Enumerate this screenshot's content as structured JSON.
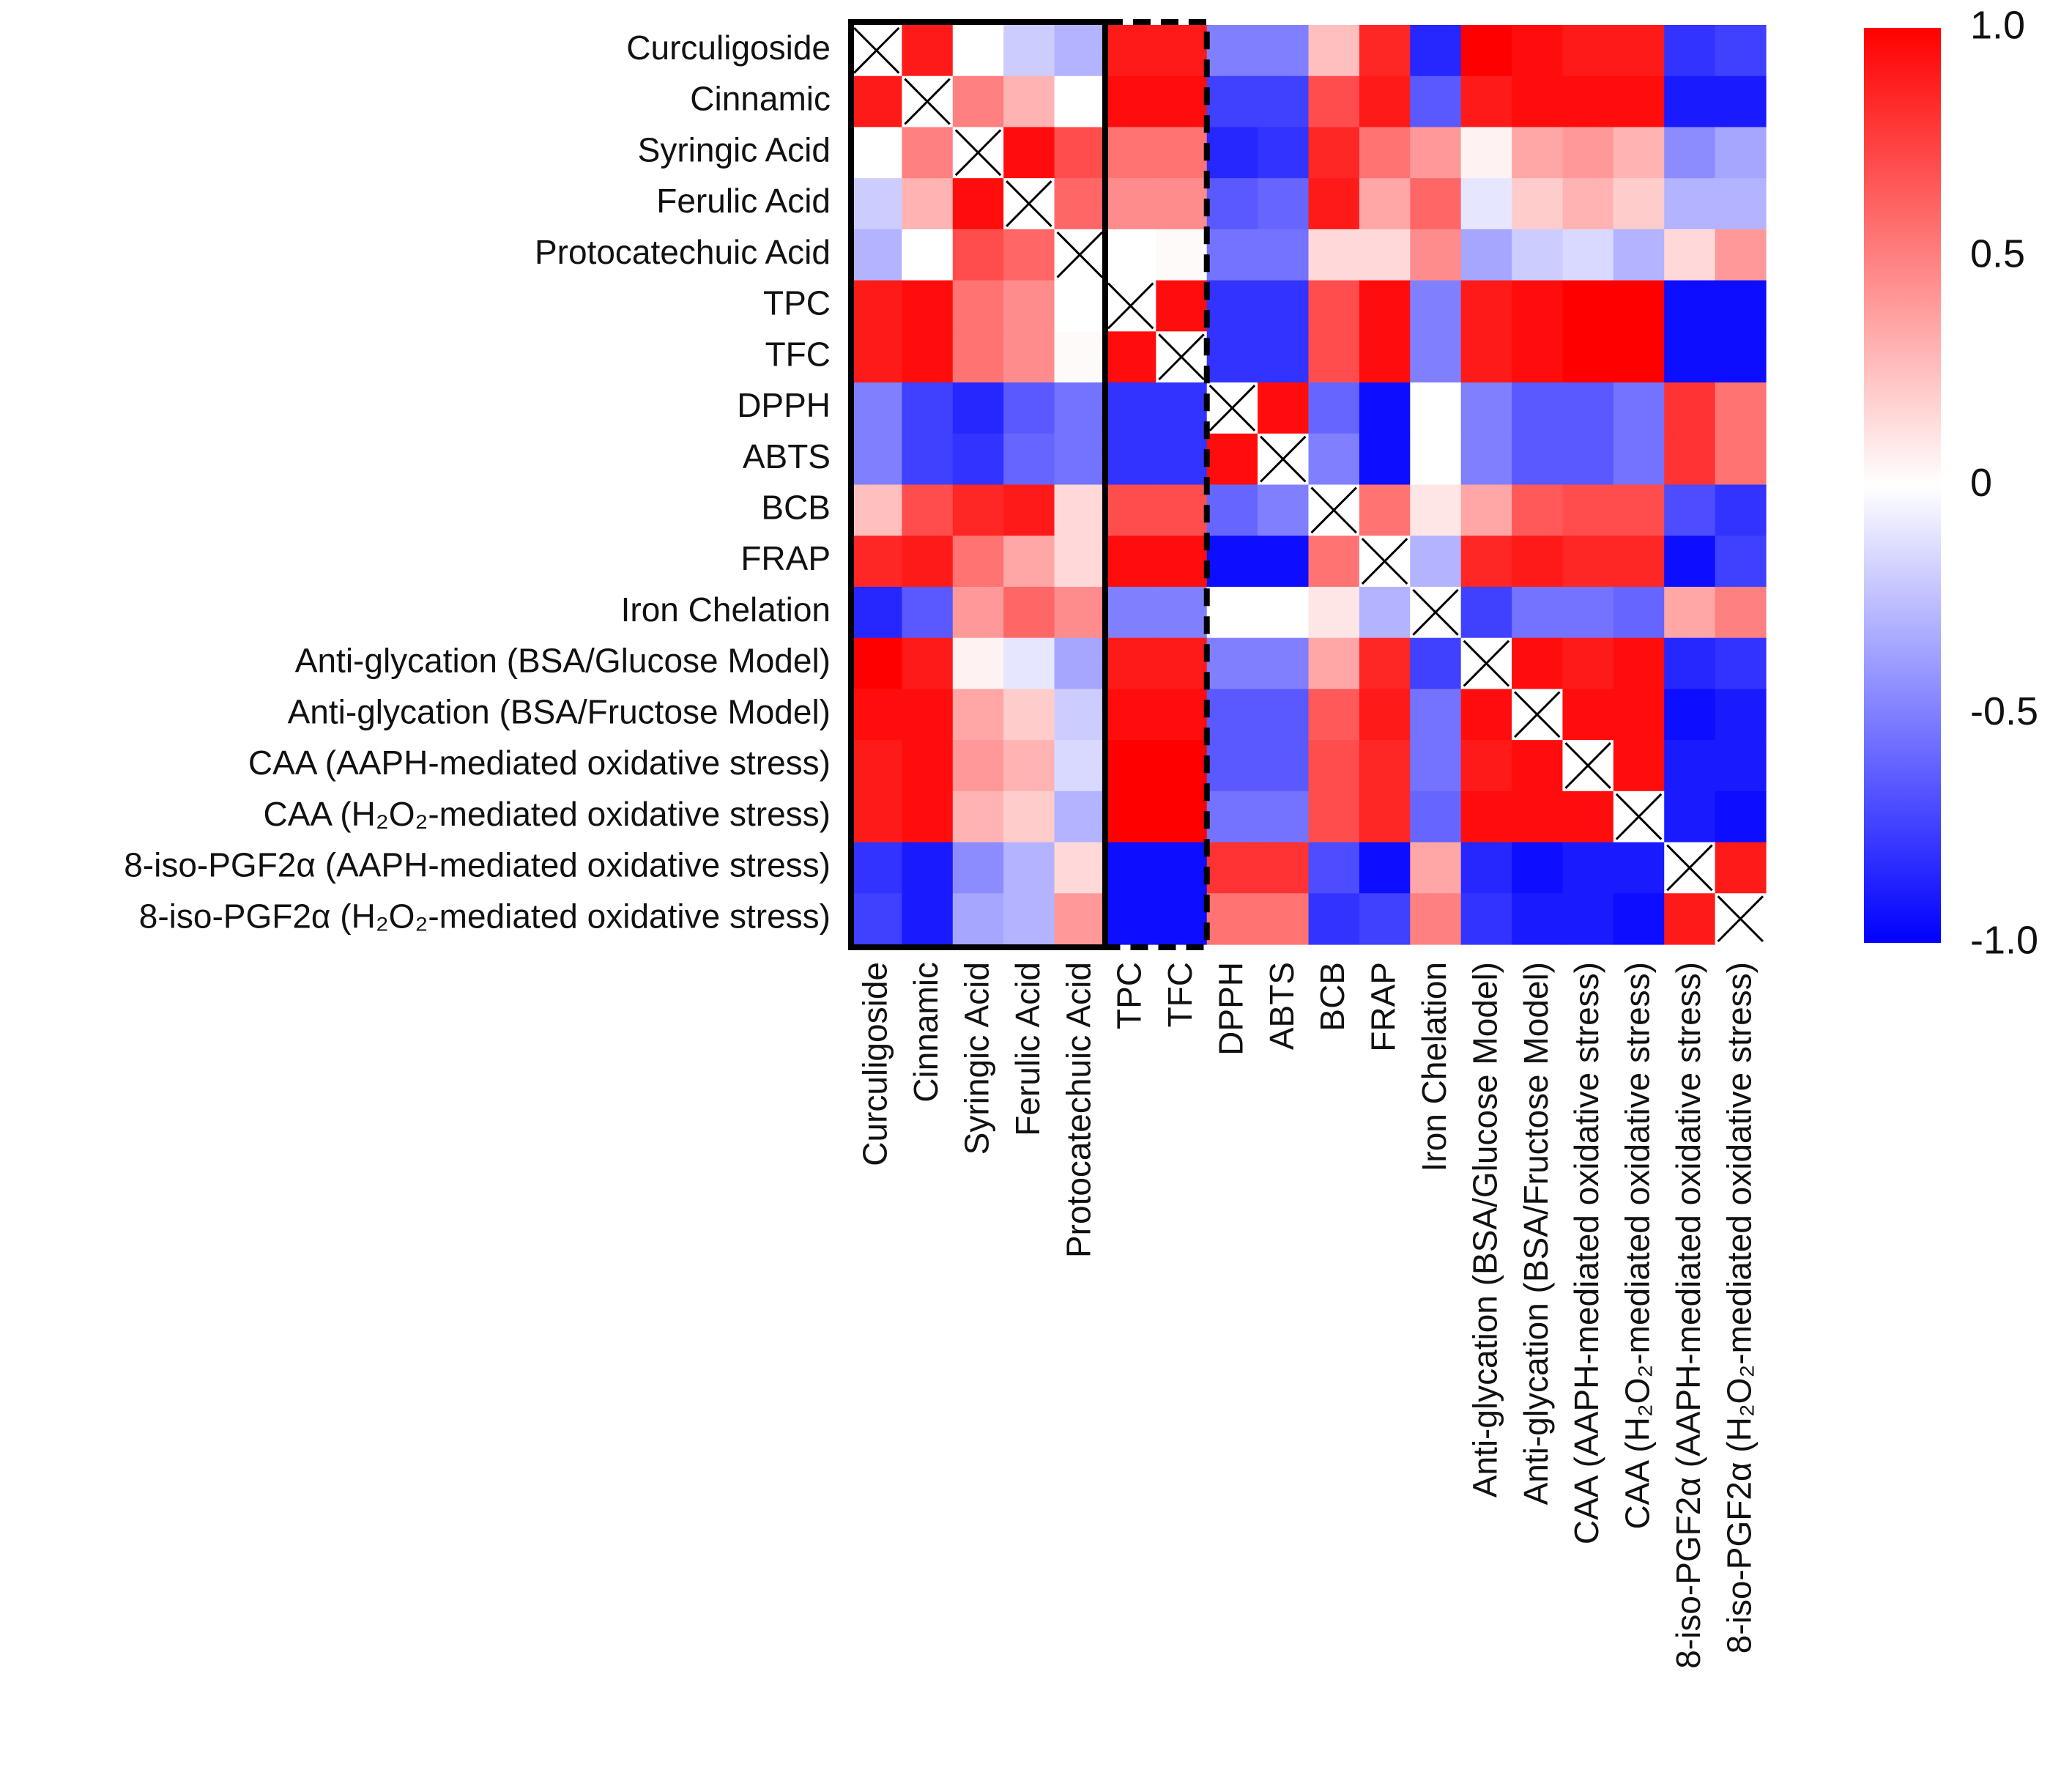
{
  "chart_data": {
    "type": "heatmap",
    "title": "",
    "xlabel": "",
    "ylabel": "",
    "labels": [
      "Curculigoside",
      "Cinnamic",
      "Syringic Acid",
      "Ferulic Acid",
      "Protocatechuic Acid",
      "TPC",
      "TFC",
      "DPPH",
      "ABTS",
      "BCB",
      "FRAP",
      "Iron Chelation",
      "Anti-glycation (BSA/Glucose Model)",
      "Anti-glycation (BSA/Fructose Model)",
      "CAA (AAPH-mediated oxidative stress)",
      "CAA (H₂O₂-mediated oxidative stress)",
      "8-iso-PGF2α (AAPH-mediated oxidative stress)",
      "8-iso-PGF2α (H₂O₂-mediated oxidative stress)"
    ],
    "values": [
      [
        null,
        0.9,
        0.0,
        -0.2,
        -0.3,
        0.9,
        0.9,
        -0.5,
        -0.5,
        0.25,
        0.85,
        -0.85,
        1.0,
        0.95,
        0.9,
        0.9,
        -0.8,
        -0.75
      ],
      [
        0.9,
        null,
        0.5,
        0.3,
        0.0,
        0.95,
        0.95,
        -0.75,
        -0.75,
        0.7,
        0.9,
        -0.65,
        0.9,
        0.95,
        0.95,
        0.95,
        -0.9,
        -0.9
      ],
      [
        0.0,
        0.5,
        null,
        0.95,
        0.7,
        0.55,
        0.55,
        -0.85,
        -0.8,
        0.85,
        0.55,
        0.4,
        0.05,
        0.35,
        0.4,
        0.3,
        -0.45,
        -0.35
      ],
      [
        -0.2,
        0.3,
        0.95,
        null,
        0.6,
        0.45,
        0.45,
        -0.65,
        -0.6,
        0.9,
        0.35,
        0.6,
        -0.1,
        0.2,
        0.3,
        0.2,
        -0.3,
        -0.3
      ],
      [
        -0.3,
        0.0,
        0.7,
        0.6,
        null,
        0.0,
        0.02,
        -0.55,
        -0.55,
        0.15,
        0.15,
        0.45,
        -0.35,
        -0.2,
        -0.15,
        -0.3,
        0.15,
        0.4
      ],
      [
        0.9,
        0.95,
        0.55,
        0.45,
        0.0,
        null,
        0.95,
        -0.8,
        -0.8,
        0.7,
        0.95,
        -0.5,
        0.9,
        0.95,
        1.0,
        1.0,
        -0.95,
        -0.95
      ],
      [
        0.9,
        0.95,
        0.55,
        0.45,
        0.02,
        0.95,
        null,
        -0.8,
        -0.8,
        0.7,
        0.95,
        -0.5,
        0.9,
        0.95,
        1.0,
        1.0,
        -0.95,
        -0.95
      ],
      [
        -0.5,
        -0.75,
        -0.85,
        -0.65,
        -0.55,
        -0.8,
        -0.8,
        null,
        0.95,
        -0.6,
        -0.95,
        0.0,
        -0.5,
        -0.65,
        -0.65,
        -0.55,
        0.8,
        0.55
      ],
      [
        -0.5,
        -0.75,
        -0.8,
        -0.6,
        -0.55,
        -0.8,
        -0.8,
        0.95,
        null,
        -0.5,
        -0.95,
        0.0,
        -0.5,
        -0.65,
        -0.65,
        -0.55,
        0.8,
        0.55
      ],
      [
        0.25,
        0.7,
        0.85,
        0.9,
        0.15,
        0.7,
        0.7,
        -0.6,
        -0.5,
        null,
        0.55,
        0.1,
        0.35,
        0.65,
        0.7,
        0.7,
        -0.7,
        -0.8
      ],
      [
        0.85,
        0.9,
        0.55,
        0.35,
        0.15,
        0.95,
        0.95,
        -0.95,
        -0.95,
        0.55,
        null,
        -0.3,
        0.85,
        0.9,
        0.85,
        0.85,
        -0.95,
        -0.75
      ],
      [
        -0.85,
        -0.65,
        0.4,
        0.6,
        0.45,
        -0.5,
        -0.5,
        0.0,
        0.0,
        0.1,
        -0.3,
        null,
        -0.75,
        -0.55,
        -0.55,
        -0.6,
        0.35,
        0.5
      ],
      [
        1.0,
        0.9,
        0.05,
        -0.1,
        -0.35,
        0.9,
        0.9,
        -0.5,
        -0.5,
        0.35,
        0.85,
        -0.75,
        null,
        0.95,
        0.9,
        0.95,
        -0.85,
        -0.8
      ],
      [
        0.95,
        0.95,
        0.35,
        0.2,
        -0.2,
        0.95,
        0.95,
        -0.65,
        -0.65,
        0.65,
        0.9,
        -0.55,
        0.95,
        null,
        0.95,
        0.95,
        -0.95,
        -0.9
      ],
      [
        0.9,
        0.95,
        0.4,
        0.3,
        -0.15,
        1.0,
        1.0,
        -0.65,
        -0.65,
        0.7,
        0.85,
        -0.55,
        0.9,
        0.95,
        null,
        0.95,
        -0.9,
        -0.9
      ],
      [
        0.9,
        0.95,
        0.3,
        0.2,
        -0.3,
        1.0,
        1.0,
        -0.55,
        -0.55,
        0.7,
        0.85,
        -0.6,
        0.95,
        0.95,
        0.95,
        null,
        -0.9,
        -0.95
      ],
      [
        -0.8,
        -0.9,
        -0.45,
        -0.3,
        0.15,
        -0.95,
        -0.95,
        0.8,
        0.8,
        -0.7,
        -0.95,
        0.35,
        -0.85,
        -0.95,
        -0.9,
        -0.9,
        null,
        0.9
      ],
      [
        -0.75,
        -0.9,
        -0.35,
        -0.3,
        0.4,
        -0.95,
        -0.95,
        0.55,
        0.55,
        -0.8,
        -0.75,
        0.5,
        -0.8,
        -0.9,
        -0.9,
        -0.95,
        0.9,
        null
      ]
    ],
    "diagonal_marker": "cross",
    "colorscale": {
      "min": -1.0,
      "max": 1.0,
      "low": "#0000ff",
      "mid": "#ffffff",
      "high": "#ff0000"
    },
    "colorbar": {
      "placement": "right",
      "ticks": [
        "1.0",
        "0.5",
        "0",
        "-0.5",
        "-1.0"
      ]
    },
    "highlight_boxes": [
      {
        "style": "solid",
        "columns": [
          0,
          4
        ]
      },
      {
        "style": "dashed",
        "columns": [
          5,
          6
        ]
      }
    ],
    "grid": false,
    "legend": "none"
  }
}
